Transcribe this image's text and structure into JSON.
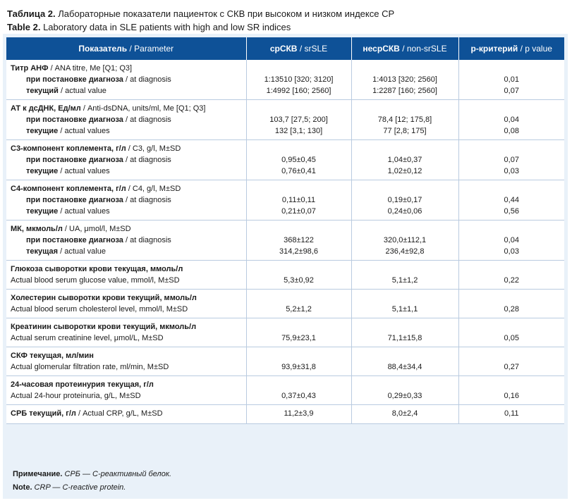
{
  "title_ru_label": "Таблица 2.",
  "title_ru": "Лабораторные показатели пациенток с СКВ при высоком и низком индексе СР",
  "title_en_label": "Table 2.",
  "title_en": "Laboratory data in SLE patients with high and low SR indices",
  "header": {
    "c1_ru": "Показатель",
    "c1_en": "/ Parameter",
    "c2_ru": "срСКВ",
    "c2_en": "/ srSLE",
    "c3_ru": "несрСКВ",
    "c3_en": "/ non-srSLE",
    "c4_ru": "p-критерий",
    "c4_en": "/ p value"
  },
  "rows": [
    {
      "label_b": "Титр АНФ",
      "label_r": " / ANA titre, Me [Q1; Q3]",
      "s1_b": "при постановке диагноза",
      "s1_r": " / at diagnosis",
      "s2_b": "текущий",
      "s2_r": " / actual value",
      "a1": "1:13510 [320; 3120]",
      "a2": "1:4992 [160; 2560]",
      "b1": "1:4013 [320; 2560]",
      "b2": "1:2287 [160; 2560]",
      "p1": "0,01",
      "p2": "0,07"
    },
    {
      "label_b": "АТ к дсДНК, Ед/мл",
      "label_r": " / Anti-dsDNA, units/ml, Me [Q1; Q3]",
      "s1_b": "при постановке диагноза",
      "s1_r": " / at diagnosis",
      "s2_b": "текущие",
      "s2_r": " / actual values",
      "a1": "103,7 [27,5; 200]",
      "a2": "132 [3,1; 130]",
      "b1": "78,4 [12; 175,8]",
      "b2": "77 [2,8; 175]",
      "p1": "0,04",
      "p2": "0,08"
    },
    {
      "label_b": "С3-компонент коплемента, г/л",
      "label_r": " / C3, g/l, M±SD",
      "s1_b": "при постановке диагноза",
      "s1_r": " / at diagnosis",
      "s2_b": "текущие",
      "s2_r": " / actual values",
      "a1": "0,95±0,45",
      "a2": "0,76±0,41",
      "b1": "1,04±0,37",
      "b2": "1,02±0,12",
      "p1": "0,07",
      "p2": "0,03"
    },
    {
      "label_b": "С4-компонент коплемента, г/л",
      "label_r": " / C4, g/l, M±SD",
      "s1_b": "при постановке диагноза",
      "s1_r": " / at diagnosis",
      "s2_b": "текущие",
      "s2_r": " / actual values",
      "a1": "0,11±0,11",
      "a2": "0,21±0,07",
      "b1": "0,19±0,17",
      "b2": "0,24±0,06",
      "p1": "0,44",
      "p2": "0,56"
    },
    {
      "label_b": "МК, мкмоль/л",
      "label_r": " / UA, μmol/l, M±SD",
      "s1_b": "при постановке диагноза",
      "s1_r": " / at diagnosis",
      "s2_b": "текущая",
      "s2_r": " / actual value",
      "a1": "368±122",
      "a2": "314,2±98,6",
      "b1": "320,0±112,1",
      "b2": "236,4±92,8",
      "p1": "0,04",
      "p2": "0,03"
    }
  ],
  "rows2": [
    {
      "l1": "Глюкоза сыворотки крови текущая, ммоль/л",
      "l2": "Actual blood serum glucose value, mmol/l, M±SD",
      "a": "5,3±0,92",
      "b": "5,1±1,2",
      "p": "0,22"
    },
    {
      "l1": "Холестерин сыворотки крови текущий, ммоль/л",
      "l2": "Actual blood serum cholesterol level, mmol/l, M±SD",
      "a": "5,2±1,2",
      "b": "5,1±1,1",
      "p": "0,28"
    },
    {
      "l1": "Креатинин сыворотки крови текущий, мкмоль/л",
      "l2": "Actual serum creatinine level, μmol/L, M±SD",
      "a": "75,9±23,1",
      "b": "71,1±15,8",
      "p": "0,05"
    },
    {
      "l1": "СКФ текущая, мл/мин",
      "l2": "Actual glomerular filtration rate, ml/min, M±SD",
      "a": "93,9±31,8",
      "b": "88,4±34,4",
      "p": "0,27"
    },
    {
      "l1": "24-часовая протеинурия текущая, г/л",
      "l2": "Actual 24-hour proteinuria, g/L, M±SD",
      "a": "0,37±0,43",
      "b": "0,29±0,33",
      "p": "0,16"
    }
  ],
  "last": {
    "l_b": "СРБ текущий, г/л",
    "l_r": " / Actual CRP, g/L, M±SD",
    "a": "11,2±3,9",
    "b": "8,0±2,4",
    "p": "0,11"
  },
  "note_ru_label": "Примечание.",
  "note_ru": " СРБ — С-реактивный белок.",
  "note_en_label": "Note.",
  "note_en": " CRP — C-reactive protein."
}
